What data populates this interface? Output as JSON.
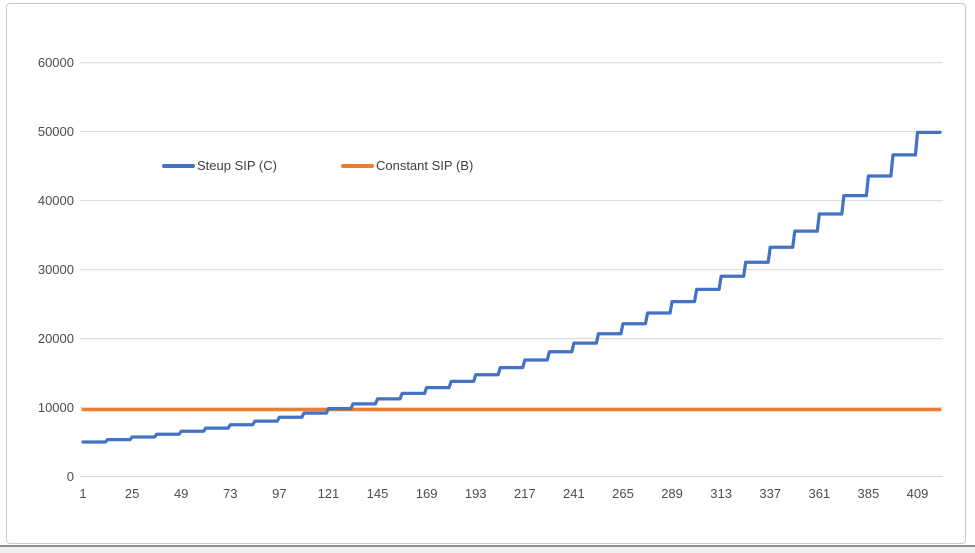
{
  "chart_data": {
    "type": "line",
    "title": "",
    "grid": "horizontal",
    "grid_color": "#d9d9d9",
    "legend_position": "inside-top-left",
    "x_axis": {
      "label": "",
      "unit": "months",
      "min": 1,
      "max": 420,
      "ticks": [
        1,
        25,
        49,
        73,
        97,
        121,
        145,
        169,
        193,
        217,
        241,
        265,
        289,
        313,
        337,
        361,
        385,
        409
      ]
    },
    "y_axis": {
      "label": "",
      "min": 0,
      "max": 60000,
      "ticks": [
        0,
        10000,
        20000,
        30000,
        40000,
        50000,
        60000
      ]
    },
    "series": [
      {
        "name": "Steup SIP (C)",
        "color": "#4472C4",
        "style": "step",
        "months_per_step": 12,
        "x_range_months": [
          1,
          420
        ],
        "yearly_values": [
          5000,
          5350,
          5725,
          6125,
          6554,
          7013,
          7504,
          8029,
          8591,
          9193,
          9836,
          10524,
          11261,
          12049,
          12893,
          13795,
          14761,
          15794,
          16900,
          18083,
          19348,
          20703,
          22152,
          23703,
          25362,
          27137,
          29037,
          31070,
          33245,
          35572,
          38062,
          40726,
          43577,
          46628,
          49892
        ]
      },
      {
        "name": "Constant SIP (B)",
        "color": "#ED7D31",
        "style": "constant",
        "value": 9700,
        "x_range_months": [
          1,
          420
        ]
      }
    ]
  }
}
